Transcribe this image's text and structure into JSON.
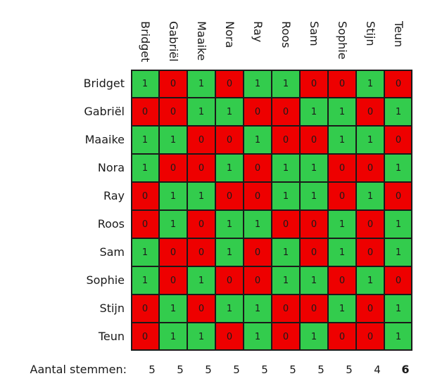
{
  "chart_data": {
    "type": "heatmap",
    "title": "",
    "columns": [
      "Bridget",
      "Gabriël",
      "Maaike",
      "Nora",
      "Ray",
      "Roos",
      "Sam",
      "Sophie",
      "Stijn",
      "Teun"
    ],
    "rows": [
      "Bridget",
      "Gabriël",
      "Maaike",
      "Nora",
      "Ray",
      "Roos",
      "Sam",
      "Sophie",
      "Stijn",
      "Teun"
    ],
    "values": [
      [
        1,
        0,
        1,
        0,
        1,
        1,
        0,
        0,
        1,
        0
      ],
      [
        0,
        0,
        1,
        1,
        0,
        0,
        1,
        1,
        0,
        1
      ],
      [
        1,
        1,
        0,
        0,
        1,
        0,
        0,
        1,
        1,
        0
      ],
      [
        1,
        0,
        0,
        1,
        0,
        1,
        1,
        0,
        0,
        1
      ],
      [
        0,
        1,
        1,
        0,
        0,
        1,
        1,
        0,
        1,
        0
      ],
      [
        0,
        1,
        0,
        1,
        1,
        0,
        0,
        1,
        0,
        1
      ],
      [
        1,
        0,
        0,
        1,
        0,
        1,
        0,
        1,
        0,
        1
      ],
      [
        1,
        0,
        1,
        0,
        0,
        1,
        1,
        0,
        1,
        0
      ],
      [
        0,
        1,
        0,
        1,
        1,
        0,
        0,
        1,
        0,
        1
      ],
      [
        0,
        1,
        1,
        0,
        1,
        0,
        1,
        0,
        0,
        1
      ]
    ],
    "color_scale": {
      "1": "#33cc4d",
      "0": "#ee0000"
    },
    "footer_label": "Aantal stemmen:",
    "totals": [
      5,
      5,
      5,
      5,
      5,
      5,
      5,
      5,
      4,
      6
    ],
    "highlighted_total": "Teun"
  }
}
